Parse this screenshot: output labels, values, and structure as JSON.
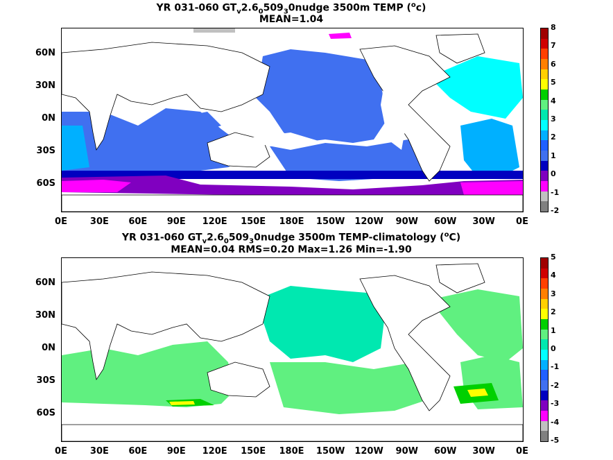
{
  "panels": [
    {
      "title_line1_a": "YR 031-060 GT",
      "title_sub1": "v",
      "title_line1_b": "2.6",
      "title_sub2": "0",
      "title_line1_c": "509",
      "title_sub3": "3",
      "title_line1_d": "0nudge 3500m TEMP (",
      "title_sup": "o",
      "title_line1_e": "c)",
      "title_line2": "MEAN=1.04",
      "colorbar_ticks": [
        "8",
        "7",
        "6",
        "5",
        "4",
        "3",
        "2",
        "1",
        "0",
        "-1",
        "-2"
      ],
      "colorbar_colors": [
        "#a00000",
        "#d00000",
        "#ff4000",
        "#ff8000",
        "#ffd000",
        "#ffff00",
        "#00d000",
        "#60f080",
        "#00e8b0",
        "#00ffff",
        "#00b0ff",
        "#2060ff",
        "#4070f0",
        "#0000c0",
        "#8000c0",
        "#ff00ff",
        "#c0c0c0",
        "#808080"
      ]
    },
    {
      "title_line1_a": "YR 031-060 GT",
      "title_sub1": "v",
      "title_line1_b": "2.6",
      "title_sub2": "0",
      "title_line1_c": "509",
      "title_sub3": "3",
      "title_line1_d": "0nudge 3500m TEMP-climatology (",
      "title_sup": "o",
      "title_line1_e": "C)",
      "title_line2": "MEAN=0.04   RMS=0.20    Max=1.26   Min=-1.90",
      "colorbar_ticks": [
        "5",
        "4",
        "3",
        "2",
        "1",
        "0",
        "-1",
        "-2",
        "-3",
        "-4",
        "-5"
      ],
      "colorbar_colors": [
        "#a00000",
        "#d00000",
        "#ff4000",
        "#ff8000",
        "#ffd000",
        "#ffff00",
        "#00d000",
        "#60f080",
        "#00e8b0",
        "#00ffff",
        "#00b0ff",
        "#2060ff",
        "#4070f0",
        "#0000c0",
        "#8000c0",
        "#ff00ff",
        "#c0c0c0",
        "#808080"
      ]
    }
  ],
  "lat_labels": [
    "60N",
    "30N",
    "0N",
    "30S",
    "60S"
  ],
  "lon_labels": [
    "0E",
    "30E",
    "60E",
    "90E",
    "120E",
    "150E",
    "180E",
    "150W",
    "120W",
    "90W",
    "60W",
    "30W",
    "0E"
  ]
}
